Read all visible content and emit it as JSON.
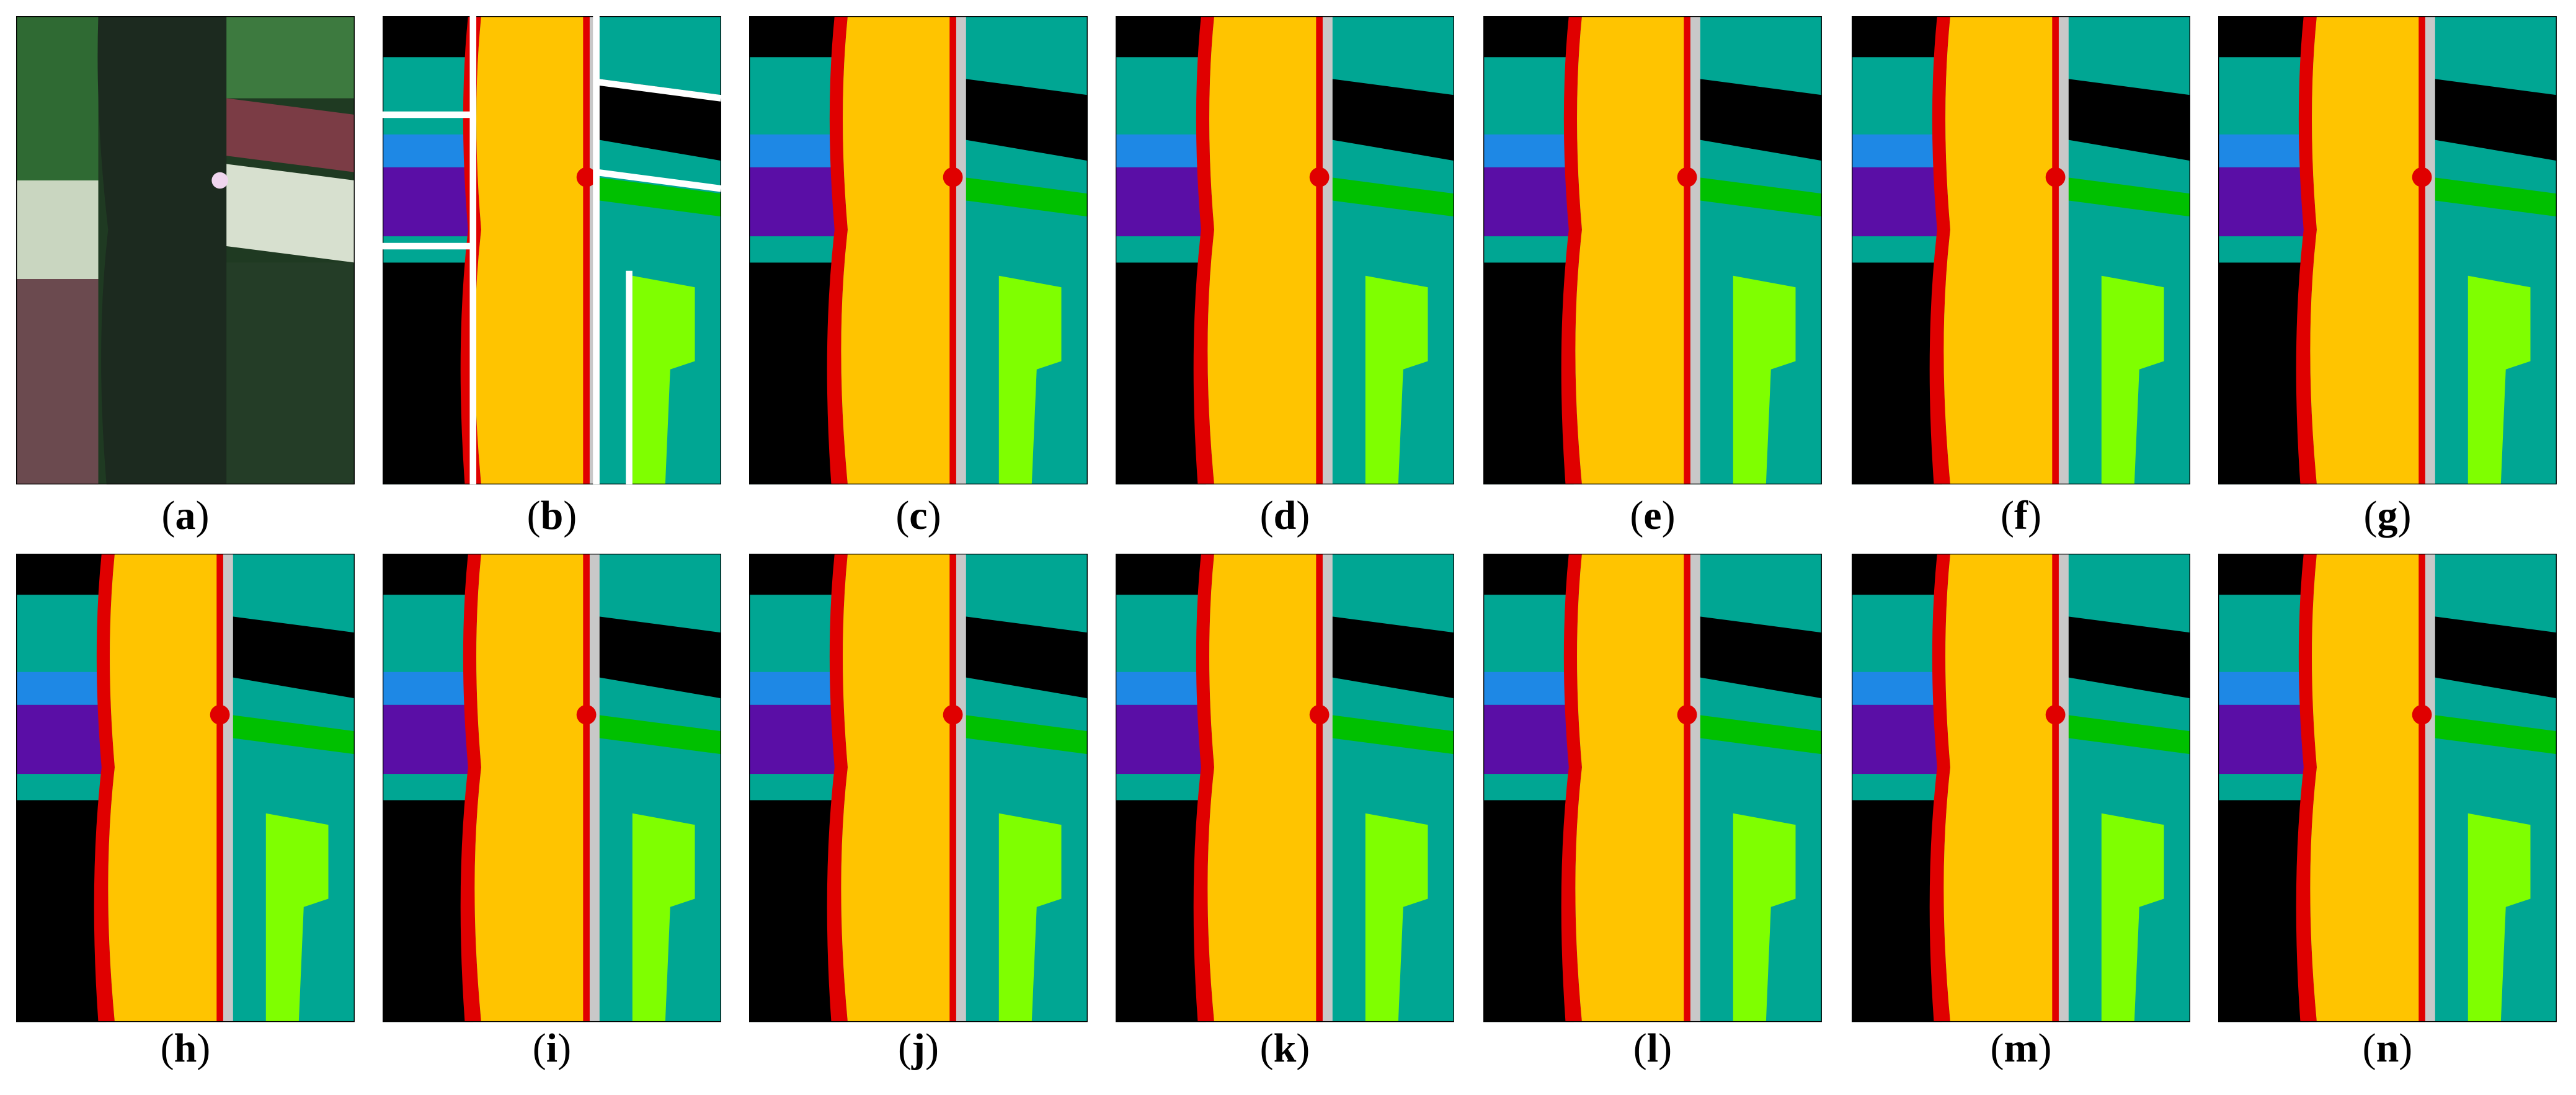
{
  "figure": {
    "label_open": "(",
    "label_close": ")",
    "panels": [
      {
        "label": "a"
      },
      {
        "label": "b"
      },
      {
        "label": "c"
      },
      {
        "label": "d"
      },
      {
        "label": "e"
      },
      {
        "label": "f"
      },
      {
        "label": "g"
      },
      {
        "label": "h"
      },
      {
        "label": "i"
      },
      {
        "label": "j"
      },
      {
        "label": "k"
      },
      {
        "label": "l"
      },
      {
        "label": "m"
      },
      {
        "label": "n"
      }
    ]
  }
}
